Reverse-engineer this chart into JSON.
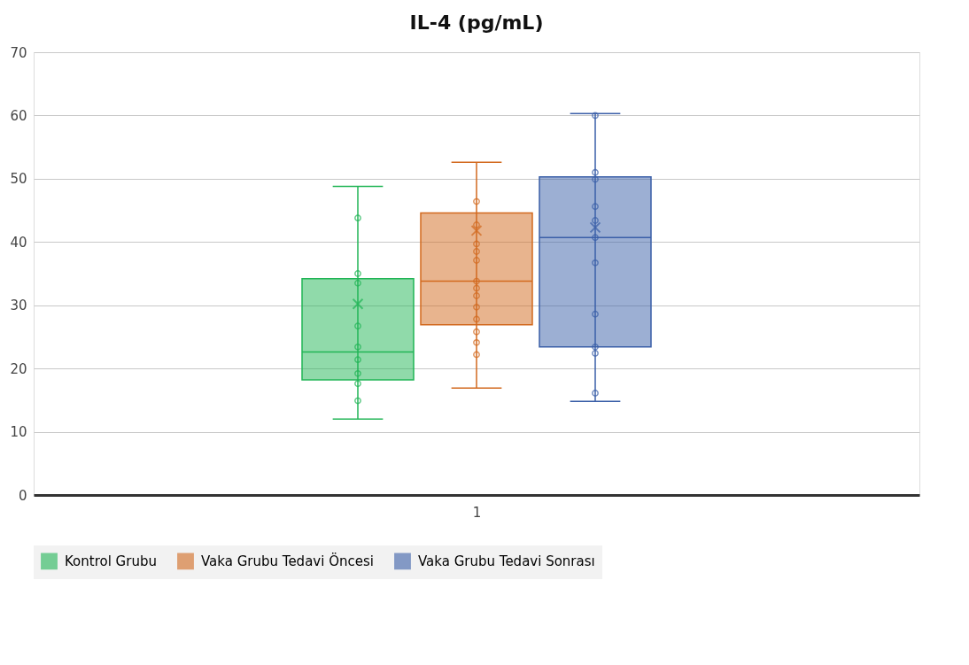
{
  "chart_data": {
    "type": "box",
    "title": "IL-4 (pg/mL)",
    "categories": [
      "1"
    ],
    "ylim": [
      0,
      70
    ],
    "yticks": [
      0,
      10,
      20,
      30,
      40,
      50,
      60,
      70
    ],
    "grid": "y",
    "legend": "bottom",
    "marker": "circle",
    "series": [
      {
        "name": "Kontrol Grubu",
        "color": "#21b556",
        "boxes": [
          {
            "low": 12.0,
            "q1": 18.2,
            "median": 22.6,
            "q3": 34.2,
            "high": 48.8,
            "mean": 30.2
          }
        ]
      },
      {
        "name": "Vaka Grubu Tedavi Öncesi",
        "color": "#d2691e",
        "boxes": [
          {
            "low": 16.9,
            "q1": 26.9,
            "median": 33.8,
            "q3": 44.6,
            "high": 52.6,
            "mean": 41.8
          }
        ]
      },
      {
        "name": "Vaka Grubu Tedavi Sonrası",
        "color": "#3a5fa8",
        "boxes": [
          {
            "low": 14.8,
            "q1": 23.4,
            "median": 40.7,
            "q3": 50.3,
            "high": 60.3,
            "mean": 42.3
          }
        ]
      },
      {
        "type": "scatter",
        "color": "#21b556",
        "x": [
          "1",
          "1",
          "1",
          "1",
          "1",
          "1",
          "1",
          "1",
          "1"
        ],
        "values": [
          43.8,
          35.0,
          33.5,
          26.7,
          23.4,
          21.4,
          19.2,
          17.6,
          14.9
        ]
      },
      {
        "type": "scatter",
        "color": "#d2691e",
        "x": [
          "1",
          "1",
          "1",
          "1",
          "1",
          "1",
          "1",
          "1",
          "1",
          "1",
          "1",
          "1",
          "1"
        ],
        "values": [
          46.4,
          42.7,
          39.7,
          38.5,
          37.1,
          33.8,
          32.7,
          31.5,
          29.7,
          27.8,
          25.8,
          24.1,
          22.2
        ]
      },
      {
        "type": "scatter",
        "color": "#3a5fa8",
        "x": [
          "1",
          "1",
          "1",
          "1",
          "1",
          "1",
          "1",
          "1",
          "1",
          "1",
          "1"
        ],
        "values": [
          60.0,
          51.0,
          49.9,
          45.6,
          43.4,
          40.7,
          36.7,
          28.6,
          23.4,
          22.4,
          16.1
        ]
      }
    ]
  }
}
